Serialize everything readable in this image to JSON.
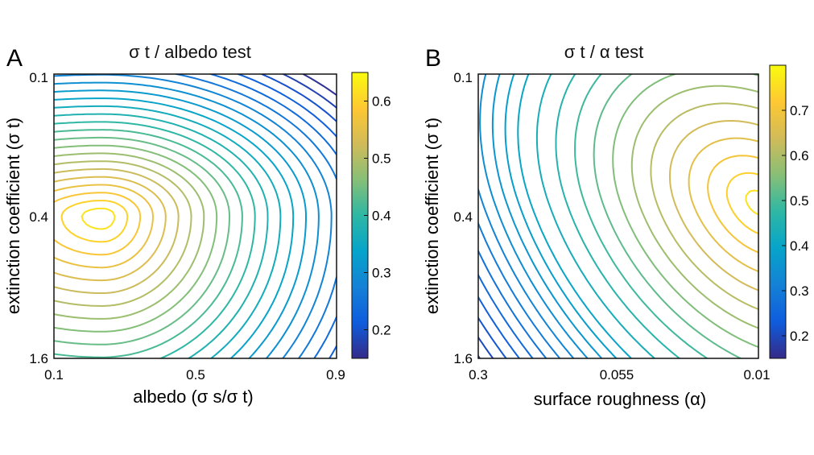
{
  "colormap": [
    "#352a87",
    "#0f5cdd",
    "#1481d6",
    "#06a4ca",
    "#2eb7a4",
    "#87bf77",
    "#d1bb59",
    "#fec832",
    "#f9fb0e"
  ],
  "chart_data": [
    {
      "type": "contour",
      "panel_label": "A",
      "title": "σ t / albedo test",
      "xlabel": "albedo (σ s/σ t)",
      "ylabel": "extinction coefficient (σ t)",
      "xticks": [
        "0.1",
        "0.5",
        "0.9"
      ],
      "yticks": [
        "0.1",
        "0.4",
        "1.6"
      ],
      "colorbar_ticks": [
        0.2,
        0.3,
        0.4,
        0.5,
        0.6
      ],
      "colorbar_range": [
        0.15,
        0.65
      ],
      "peak": {
        "x": 0.17,
        "y": 0.5
      },
      "peak_value": 0.64,
      "levels": [
        0.16,
        0.18,
        0.2,
        0.22,
        0.24,
        0.26,
        0.28,
        0.3,
        0.32,
        0.34,
        0.36,
        0.38,
        0.4,
        0.42,
        0.44,
        0.46,
        0.48,
        0.5,
        0.52,
        0.54,
        0.56,
        0.58,
        0.6,
        0.62
      ]
    },
    {
      "type": "contour",
      "panel_label": "B",
      "title": "σ t / α test",
      "xlabel": "surface roughness (α)",
      "ylabel": "extinction coefficient (σ t)",
      "xticks": [
        "0.3",
        "0.055",
        "0.01"
      ],
      "yticks": [
        "0.1",
        "0.4",
        "1.6"
      ],
      "colorbar_ticks": [
        0.2,
        0.3,
        0.4,
        0.5,
        0.6,
        0.7
      ],
      "colorbar_range": [
        0.15,
        0.8
      ],
      "peak": {
        "x": 1.0,
        "y": 0.45
      },
      "peak_value": 0.78,
      "levels": [
        0.18,
        0.2,
        0.22,
        0.24,
        0.26,
        0.28,
        0.3,
        0.32,
        0.34,
        0.36,
        0.38,
        0.4,
        0.43,
        0.46,
        0.49,
        0.52,
        0.55,
        0.58,
        0.61,
        0.64,
        0.67,
        0.7,
        0.73,
        0.76
      ]
    }
  ]
}
